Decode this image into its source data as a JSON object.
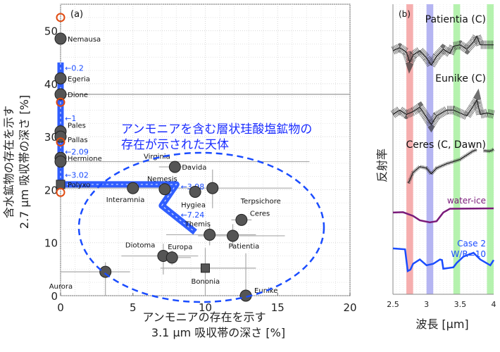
{
  "chart_data": [
    {
      "type": "scatter",
      "panel_label": "(a)",
      "xlabel": [
        "アンモニアの存在を示す",
        "3.1 μm 吸収帯の深さ [%]"
      ],
      "ylabel": [
        "含水鉱物の存在を示す",
        "2.7 μm 吸収帯の深さ [%]"
      ],
      "xlim": [
        0,
        20
      ],
      "ylim": [
        0,
        55
      ],
      "xticks": [
        0,
        5,
        10,
        15,
        20
      ],
      "yticks": [
        0,
        10,
        20,
        30,
        40,
        50
      ],
      "grid": true,
      "colors": {
        "asteroid": "#555555",
        "model": "#1a4cff",
        "orange": "#e04a10",
        "errorbar": "#aaaaaa"
      },
      "asteroids": [
        {
          "name": "Nemausa",
          "x": 0,
          "y": 48.5,
          "marker": "circle"
        },
        {
          "name": "Egeria",
          "x": 0,
          "y": 41,
          "marker": "circle"
        },
        {
          "name": "Dione",
          "x": 0,
          "y": 38,
          "marker": "circle"
        },
        {
          "name": "Pales",
          "x": 0,
          "y": 31,
          "marker": "circle"
        },
        {
          "name": "Pallas",
          "x": 0,
          "y": 30,
          "marker": "circle"
        },
        {
          "name": "Hermione",
          "x": 0,
          "y": 26,
          "marker": "circle"
        },
        {
          "name": "Virginia",
          "x": 0,
          "y": 25.3,
          "marker": "circle",
          "xerr": [
            0,
            17.2
          ]
        },
        {
          "name": "Polyxo",
          "x": 0,
          "y": 21,
          "marker": "square"
        },
        {
          "name": "Davida",
          "x": 7.9,
          "y": 24.3,
          "marker": "circle",
          "xerr": [
            6.8,
            9
          ]
        },
        {
          "name": "Interamnia",
          "x": 5,
          "y": 20.3,
          "marker": "circle",
          "xerr": [
            0,
            16
          ]
        },
        {
          "name": "Nemesis",
          "x": 7.2,
          "y": 20.1,
          "marker": "circle"
        },
        {
          "name": "Hygiea",
          "x": 9.3,
          "y": 19.6,
          "marker": "circle"
        },
        {
          "name": "Terpsichore",
          "x": 10.5,
          "y": 20.3,
          "marker": "circle",
          "yerr": [
            16.5,
            23.8
          ]
        },
        {
          "name": "Ceres",
          "x": 12.5,
          "y": 14.3,
          "marker": "circle",
          "xerr": [
            11.8,
            13.2
          ],
          "yerr": [
            13.5,
            15
          ]
        },
        {
          "name": "Themis",
          "x": 10.3,
          "y": 11.5,
          "marker": "circle",
          "xerr": [
            7.3,
            13.5
          ],
          "yerr": [
            9.5,
            13.5
          ]
        },
        {
          "name": "Patientia",
          "x": 11.9,
          "y": 11.3,
          "marker": "circle",
          "xerr": [
            9.5,
            15.5
          ],
          "yerr": [
            9,
            13.5
          ]
        },
        {
          "name": "Diotoma",
          "x": 7.1,
          "y": 7.5,
          "marker": "circle",
          "xerr": [
            4.2,
            9.5
          ],
          "yerr": [
            4,
            9.8
          ]
        },
        {
          "name": "Europa",
          "x": 7.7,
          "y": 7.2,
          "marker": "circle",
          "xerr": [
            6.8,
            9.0
          ],
          "yerr": [
            5.8,
            8.5
          ]
        },
        {
          "name": "Bononia",
          "x": 10,
          "y": 5.2,
          "marker": "square",
          "xerr": [
            6.9,
            13.5
          ],
          "yerr": [
            0,
            9
          ]
        },
        {
          "name": "Aurora",
          "x": 3.1,
          "y": 4.5,
          "marker": "circle",
          "xerr": [
            0,
            4.8
          ],
          "yerr": [
            0,
            6.3
          ]
        },
        {
          "name": "Eunike",
          "x": 12.8,
          "y": 0,
          "marker": "circle",
          "yerr": [
            0,
            8
          ]
        }
      ],
      "orange_open_circles": [
        {
          "x": 0,
          "y": 52.5
        },
        {
          "x": 0,
          "y": 36.5
        },
        {
          "x": 0,
          "y": 29
        },
        {
          "x": 0,
          "y": 19.5
        }
      ],
      "model_curve": [
        [
          0,
          44
        ],
        [
          0,
          21
        ],
        [
          8,
          21
        ],
        [
          7,
          17
        ],
        [
          9.3,
          12
        ]
      ],
      "model_labels": [
        {
          "text": "←0.2",
          "x": 0.3,
          "y": 43
        },
        {
          "text": "←1",
          "x": 0.3,
          "y": 33.5
        },
        {
          "text": "←2.09",
          "x": 0.3,
          "y": 27.2
        },
        {
          "text": "←3.02",
          "x": 0.3,
          "y": 22.8
        },
        {
          "text": "←3.98",
          "x": 8.3,
          "y": 20.6
        },
        {
          "text": "←7.24",
          "x": 8.3,
          "y": 15.3
        }
      ],
      "reference_line_y": 38,
      "annotation": [
        "アンモニアを含む層状珪酸塩鉱物の",
        "存在が示された天体"
      ]
    },
    {
      "type": "line",
      "panel_label": "(b)",
      "xlabel": "波長 [μm]",
      "ylabel": "反射率",
      "xlim": [
        2.5,
        4
      ],
      "xticks": [
        "2.5",
        "3",
        "3.5",
        "4"
      ],
      "bands": [
        {
          "range": [
            2.7,
            2.8
          ],
          "color": "#f4a0a0"
        },
        {
          "range": [
            3.0,
            3.1
          ],
          "color": "#a8a8f0"
        },
        {
          "range": [
            3.4,
            3.5
          ],
          "color": "#a8f0a0"
        },
        {
          "range": [
            3.9,
            4.0
          ],
          "color": "#a8f0a0"
        }
      ],
      "series": [
        {
          "name": "Patientia (C)",
          "color": "#222222",
          "errorbars": true,
          "points": [
            [
              2.5,
              84
            ],
            [
              2.6,
              85
            ],
            [
              2.7,
              83.5
            ],
            [
              2.75,
              80
            ],
            [
              2.8,
              82.5
            ],
            [
              2.9,
              84
            ],
            [
              3.0,
              81.5
            ],
            [
              3.07,
              79
            ],
            [
              3.15,
              82
            ],
            [
              3.25,
              84.5
            ],
            [
              3.35,
              83
            ],
            [
              3.4,
              85.5
            ],
            [
              3.5,
              86
            ],
            [
              3.6,
              84.5
            ],
            [
              3.7,
              87
            ],
            [
              3.75,
              89
            ],
            [
              3.8,
              86
            ],
            [
              3.9,
              86
            ],
            [
              4.0,
              86
            ]
          ]
        },
        {
          "name": "Eunike (C)",
          "color": "#222222",
          "errorbars": true,
          "points": [
            [
              2.5,
              62
            ],
            [
              2.6,
              63.5
            ],
            [
              2.7,
              62
            ],
            [
              2.8,
              63
            ],
            [
              2.9,
              64.5
            ],
            [
              3.0,
              61
            ],
            [
              3.07,
              58.5
            ],
            [
              3.15,
              61.5
            ],
            [
              3.3,
              63.5
            ],
            [
              3.4,
              63.5
            ],
            [
              3.5,
              62.5
            ],
            [
              3.6,
              61.5
            ],
            [
              3.7,
              65
            ],
            [
              3.75,
              67
            ],
            [
              3.8,
              62
            ],
            [
              3.9,
              62.5
            ],
            [
              4.0,
              62
            ]
          ]
        },
        {
          "name": "Ceres (C, Dawn)",
          "color": "#222222",
          "errorbars": true,
          "points": [
            [
              2.73,
              38.3
            ],
            [
              2.8,
              42
            ],
            [
              2.9,
              44
            ],
            [
              3.0,
              43.5
            ],
            [
              3.07,
              41.5
            ],
            [
              3.15,
              43.5
            ],
            [
              3.3,
              45
            ],
            [
              3.5,
              46.5
            ],
            [
              3.7,
              49.5
            ],
            [
              3.75,
              49.8
            ]
          ]
        },
        {
          "name": "Ceres (C, Dawn) segment",
          "color": "#222222",
          "errorbars": true,
          "unlabeled": true,
          "points": [
            [
              3.85,
              49.5
            ],
            [
              3.95,
              49.3
            ],
            [
              4.0,
              50
            ]
          ]
        },
        {
          "name": "water-ice",
          "color": "#7a1a7a",
          "points": [
            [
              2.5,
              28.2
            ],
            [
              2.65,
              28.3
            ],
            [
              2.8,
              27
            ],
            [
              2.9,
              25.5
            ],
            [
              3.05,
              24.8
            ],
            [
              3.15,
              25.2
            ],
            [
              3.25,
              28.2
            ],
            [
              3.35,
              29.5
            ],
            [
              4.0,
              29.6
            ]
          ]
        },
        {
          "name": "Case 2",
          "name2": "W/R=10",
          "color": "#1a4cff",
          "points": [
            [
              2.5,
              15.8
            ],
            [
              2.68,
              15.5
            ],
            [
              2.72,
              8
            ],
            [
              2.76,
              8.5
            ],
            [
              2.8,
              10.5
            ],
            [
              2.9,
              12
            ],
            [
              3.0,
              10
            ],
            [
              3.1,
              10.5
            ],
            [
              3.2,
              12
            ],
            [
              3.23,
              11.8
            ],
            [
              3.25,
              8.8
            ],
            [
              3.4,
              9.3
            ],
            [
              3.45,
              10.8
            ],
            [
              3.55,
              13
            ],
            [
              3.7,
              14.3
            ],
            [
              3.8,
              12
            ],
            [
              3.95,
              10
            ],
            [
              4.0,
              11.8
            ]
          ]
        }
      ]
    }
  ]
}
